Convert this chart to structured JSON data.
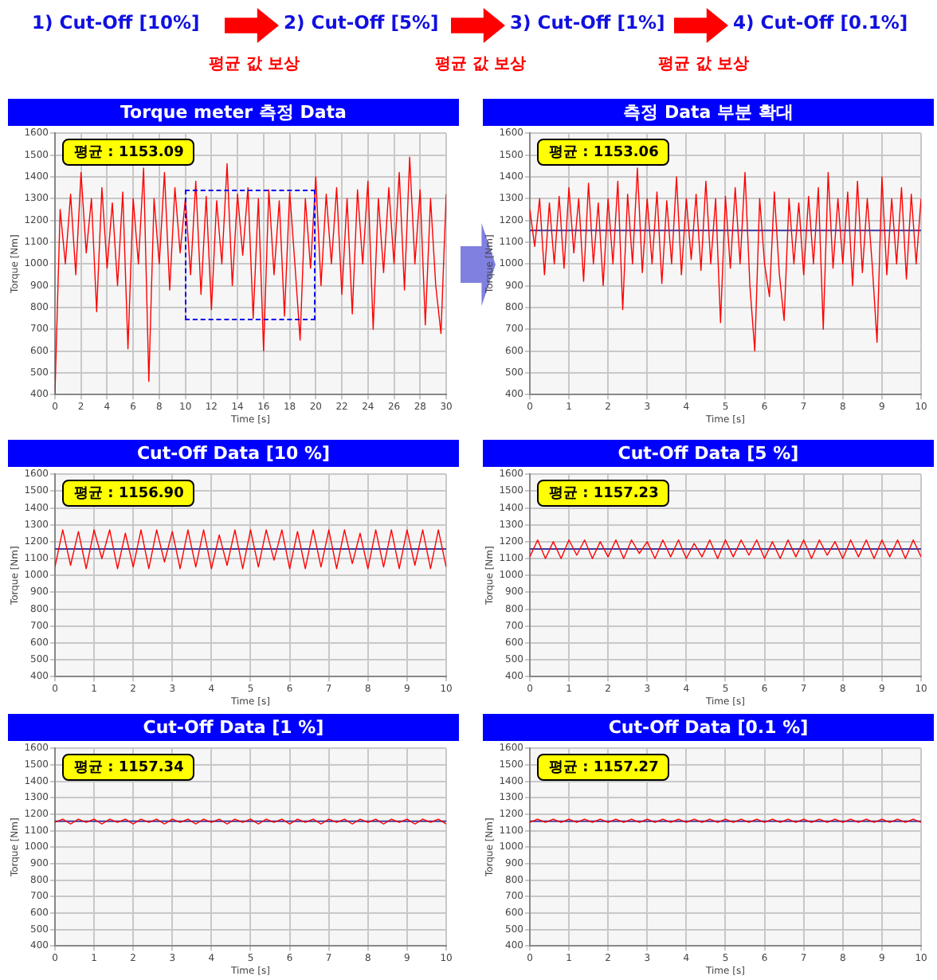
{
  "chart_data": [
    {
      "type": "other",
      "annotations": [
        "1)  Cut-Off [10%]",
        "2) Cut-Off [5%]",
        "3) Cut-Off [1%]",
        "4) Cut-Off [0.1%]",
        "평균 값 보상",
        "평균 값 보상",
        "평균 값 보상"
      ]
    },
    {
      "type": "line",
      "title": "Torque meter 측정 Data",
      "xlabel": "Time [s]",
      "ylabel": "Torque [Nm]",
      "annotations": [
        "평균 : 1153.09"
      ],
      "color": "#ff0000",
      "grid": true,
      "legend": false,
      "marker": "none",
      "xlim": [
        0,
        30
      ],
      "xticks": [
        0,
        2,
        4,
        6,
        8,
        10,
        12,
        14,
        16,
        18,
        20,
        22,
        24,
        26,
        28,
        30
      ],
      "ylim": [
        400,
        1600
      ],
      "yticks": [
        400,
        500,
        600,
        700,
        800,
        900,
        1000,
        1100,
        1200,
        1300,
        1400,
        1500,
        1600
      ],
      "x": [
        0,
        0.4,
        0.8,
        1.2,
        1.6,
        2,
        2.4,
        2.8,
        3.2,
        3.6,
        4,
        4.4,
        4.8,
        5.2,
        5.6,
        6,
        6.4,
        6.8,
        7.2,
        7.6,
        8,
        8.4,
        8.8,
        9.2,
        9.6,
        10,
        10.4,
        10.8,
        11.2,
        11.6,
        12,
        12.4,
        12.8,
        13.2,
        13.6,
        14,
        14.4,
        14.8,
        15.2,
        15.6,
        16,
        16.4,
        16.8,
        17.2,
        17.6,
        18,
        18.4,
        18.8,
        19.2,
        19.6,
        20,
        20.4,
        20.8,
        21.2,
        21.6,
        22,
        22.4,
        22.8,
        23.2,
        23.6,
        24,
        24.4,
        24.8,
        25.2,
        25.6,
        26,
        26.4,
        26.8,
        27.2,
        27.6,
        28,
        28.4,
        28.8,
        29.2,
        29.6,
        30
      ],
      "values": [
        400,
        1250,
        1000,
        1320,
        950,
        1420,
        1050,
        1300,
        780,
        1350,
        980,
        1280,
        900,
        1330,
        610,
        1300,
        1000,
        1440,
        460,
        1300,
        1000,
        1420,
        880,
        1350,
        1050,
        1300,
        950,
        1380,
        860,
        1310,
        790,
        1290,
        1000,
        1460,
        900,
        1320,
        1040,
        1350,
        750,
        1300,
        600,
        1340,
        950,
        1290,
        760,
        1330,
        1000,
        650,
        1300,
        980,
        1400,
        900,
        1320,
        1000,
        1350,
        860,
        1300,
        770,
        1340,
        1000,
        1380,
        700,
        1300,
        960,
        1350,
        1000,
        1420,
        880,
        1490,
        1000,
        1340,
        720,
        1300,
        900,
        680,
        1320
      ]
    },
    {
      "type": "line",
      "title": "측정 Data 부분 확대",
      "xlabel": "Time [s]",
      "ylabel": "Torque [Nm]",
      "annotations": [
        "평균 : 1153.06"
      ],
      "color": "#ff0000",
      "grid": true,
      "legend": false,
      "marker": "none",
      "xlim": [
        0,
        10
      ],
      "xticks": [
        0,
        1,
        2,
        3,
        4,
        5,
        6,
        7,
        8,
        9,
        10
      ],
      "ylim": [
        400,
        1600
      ],
      "yticks": [
        400,
        500,
        600,
        700,
        800,
        900,
        1000,
        1100,
        1200,
        1300,
        1400,
        1500,
        1600
      ],
      "ref_lines": [
        {
          "axis": "y",
          "value": 1153.06,
          "color": "#3c3ca0"
        }
      ],
      "x": [
        0,
        0.125,
        0.25,
        0.375,
        0.5,
        0.625,
        0.75,
        0.875,
        1,
        1.125,
        1.25,
        1.375,
        1.5,
        1.625,
        1.75,
        1.875,
        2,
        2.125,
        2.25,
        2.375,
        2.5,
        2.625,
        2.75,
        2.875,
        3,
        3.125,
        3.25,
        3.375,
        3.5,
        3.625,
        3.75,
        3.875,
        4,
        4.125,
        4.25,
        4.375,
        4.5,
        4.625,
        4.75,
        4.875,
        5,
        5.125,
        5.25,
        5.375,
        5.5,
        5.625,
        5.75,
        5.875,
        6,
        6.125,
        6.25,
        6.375,
        6.5,
        6.625,
        6.75,
        6.875,
        7,
        7.125,
        7.25,
        7.375,
        7.5,
        7.625,
        7.75,
        7.875,
        8,
        8.125,
        8.25,
        8.375,
        8.5,
        8.625,
        8.75,
        8.875,
        9,
        9.125,
        9.25,
        9.375,
        9.5,
        9.625,
        9.75,
        9.875,
        10
      ],
      "values": [
        1250,
        1080,
        1300,
        950,
        1280,
        1000,
        1310,
        980,
        1350,
        1050,
        1300,
        920,
        1370,
        1000,
        1280,
        900,
        1300,
        1000,
        1380,
        790,
        1320,
        1000,
        1440,
        960,
        1300,
        1000,
        1330,
        910,
        1290,
        1000,
        1400,
        950,
        1300,
        1020,
        1320,
        970,
        1380,
        1000,
        1300,
        730,
        1310,
        980,
        1350,
        1000,
        1420,
        900,
        600,
        1300,
        1000,
        850,
        1330,
        960,
        740,
        1300,
        1000,
        1280,
        950,
        1310,
        1000,
        1350,
        700,
        1420,
        980,
        1300,
        1000,
        1330,
        900,
        1380,
        960,
        1300,
        1000,
        640,
        1400,
        950,
        1300,
        1000,
        1350,
        930,
        1320,
        1000,
        1300
      ]
    },
    {
      "type": "line",
      "title": "Cut-Off Data [10 %]",
      "xlabel": "Time [s]",
      "ylabel": "Torque [Nm]",
      "annotations": [
        "평균 : 1156.90"
      ],
      "color": "#ff0000",
      "grid": true,
      "legend": false,
      "marker": "none",
      "xlim": [
        0,
        10
      ],
      "xticks": [
        0,
        1,
        2,
        3,
        4,
        5,
        6,
        7,
        8,
        9,
        10
      ],
      "ylim": [
        400,
        1600
      ],
      "yticks": [
        400,
        500,
        600,
        700,
        800,
        900,
        1000,
        1100,
        1200,
        1300,
        1400,
        1500,
        1600
      ],
      "ref_lines": [
        {
          "axis": "y",
          "value": 1156.9,
          "color": "#3c3ca0"
        }
      ],
      "x": [
        0,
        0.2,
        0.4,
        0.6,
        0.8,
        1,
        1.2,
        1.4,
        1.6,
        1.8,
        2,
        2.2,
        2.4,
        2.6,
        2.8,
        3,
        3.2,
        3.4,
        3.6,
        3.8,
        4,
        4.2,
        4.4,
        4.6,
        4.8,
        5,
        5.2,
        5.4,
        5.6,
        5.8,
        6,
        6.2,
        6.4,
        6.6,
        6.8,
        7,
        7.2,
        7.4,
        7.6,
        7.8,
        8,
        8.2,
        8.4,
        8.6,
        8.8,
        9,
        9.2,
        9.4,
        9.6,
        9.8,
        10
      ],
      "values": [
        1050,
        1270,
        1060,
        1260,
        1040,
        1270,
        1100,
        1270,
        1040,
        1250,
        1050,
        1270,
        1040,
        1270,
        1080,
        1260,
        1040,
        1270,
        1050,
        1270,
        1040,
        1240,
        1060,
        1270,
        1040,
        1270,
        1050,
        1270,
        1090,
        1270,
        1040,
        1260,
        1040,
        1270,
        1050,
        1270,
        1040,
        1270,
        1070,
        1250,
        1040,
        1270,
        1050,
        1270,
        1040,
        1270,
        1060,
        1270,
        1040,
        1270,
        1050
      ]
    },
    {
      "type": "line",
      "title": "Cut-Off Data [5 %]",
      "xlabel": "Time [s]",
      "ylabel": "Torque [Nm]",
      "annotations": [
        "평균 : 1157.23"
      ],
      "color": "#ff0000",
      "grid": true,
      "legend": false,
      "marker": "none",
      "xlim": [
        0,
        10
      ],
      "xticks": [
        0,
        1,
        2,
        3,
        4,
        5,
        6,
        7,
        8,
        9,
        10
      ],
      "ylim": [
        400,
        1600
      ],
      "yticks": [
        400,
        500,
        600,
        700,
        800,
        900,
        1000,
        1100,
        1200,
        1300,
        1400,
        1500,
        1600
      ],
      "ref_lines": [
        {
          "axis": "y",
          "value": 1157.23,
          "color": "#3c3ca0"
        }
      ],
      "x": [
        0,
        0.2,
        0.4,
        0.6,
        0.8,
        1,
        1.2,
        1.4,
        1.6,
        1.8,
        2,
        2.2,
        2.4,
        2.6,
        2.8,
        3,
        3.2,
        3.4,
        3.6,
        3.8,
        4,
        4.2,
        4.4,
        4.6,
        4.8,
        5,
        5.2,
        5.4,
        5.6,
        5.8,
        6,
        6.2,
        6.4,
        6.6,
        6.8,
        7,
        7.2,
        7.4,
        7.6,
        7.8,
        8,
        8.2,
        8.4,
        8.6,
        8.8,
        9,
        9.2,
        9.4,
        9.6,
        9.8,
        10
      ],
      "values": [
        1110,
        1210,
        1100,
        1200,
        1100,
        1210,
        1120,
        1210,
        1100,
        1200,
        1110,
        1210,
        1100,
        1210,
        1130,
        1200,
        1100,
        1210,
        1110,
        1210,
        1100,
        1190,
        1110,
        1210,
        1100,
        1210,
        1110,
        1210,
        1120,
        1210,
        1100,
        1200,
        1100,
        1210,
        1110,
        1210,
        1100,
        1210,
        1120,
        1200,
        1100,
        1210,
        1110,
        1210,
        1100,
        1210,
        1110,
        1210,
        1100,
        1210,
        1110
      ]
    },
    {
      "type": "line",
      "title": "Cut-Off Data [1 %]",
      "xlabel": "Time [s]",
      "ylabel": "Torque [Nm]",
      "annotations": [
        "평균 : 1157.34"
      ],
      "color": "#ff0000",
      "grid": true,
      "legend": false,
      "marker": "none",
      "xlim": [
        0,
        10
      ],
      "xticks": [
        0,
        1,
        2,
        3,
        4,
        5,
        6,
        7,
        8,
        9,
        10
      ],
      "ylim": [
        400,
        1600
      ],
      "yticks": [
        400,
        500,
        600,
        700,
        800,
        900,
        1000,
        1100,
        1200,
        1300,
        1400,
        1500,
        1600
      ],
      "ref_lines": [
        {
          "axis": "y",
          "value": 1157.34,
          "color": "#3c3ca0"
        }
      ],
      "x": [
        0,
        0.2,
        0.4,
        0.6,
        0.8,
        1,
        1.2,
        1.4,
        1.6,
        1.8,
        2,
        2.2,
        2.4,
        2.6,
        2.8,
        3,
        3.2,
        3.4,
        3.6,
        3.8,
        4,
        4.2,
        4.4,
        4.6,
        4.8,
        5,
        5.2,
        5.4,
        5.6,
        5.8,
        6,
        6.2,
        6.4,
        6.6,
        6.8,
        7,
        7.2,
        7.4,
        7.6,
        7.8,
        8,
        8.2,
        8.4,
        8.6,
        8.8,
        9,
        9.2,
        9.4,
        9.6,
        9.8,
        10
      ],
      "values": [
        1150,
        1170,
        1140,
        1170,
        1150,
        1170,
        1140,
        1170,
        1150,
        1170,
        1140,
        1170,
        1150,
        1170,
        1140,
        1170,
        1150,
        1170,
        1140,
        1170,
        1150,
        1170,
        1140,
        1170,
        1150,
        1170,
        1140,
        1170,
        1150,
        1170,
        1140,
        1170,
        1150,
        1170,
        1140,
        1170,
        1150,
        1170,
        1140,
        1170,
        1150,
        1170,
        1140,
        1170,
        1150,
        1170,
        1140,
        1170,
        1150,
        1170,
        1140
      ]
    },
    {
      "type": "line",
      "title": "Cut-Off Data [0.1 %]",
      "xlabel": "Time [s]",
      "ylabel": "Torque [Nm]",
      "annotations": [
        "평균 : 1157.27"
      ],
      "color": "#ff0000",
      "grid": true,
      "legend": false,
      "marker": "none",
      "xlim": [
        0,
        10
      ],
      "xticks": [
        0,
        1,
        2,
        3,
        4,
        5,
        6,
        7,
        8,
        9,
        10
      ],
      "ylim": [
        400,
        1600
      ],
      "yticks": [
        400,
        500,
        600,
        700,
        800,
        900,
        1000,
        1100,
        1200,
        1300,
        1400,
        1500,
        1600
      ],
      "ref_lines": [
        {
          "axis": "y",
          "value": 1157.27,
          "color": "#3c3ca0"
        }
      ],
      "x": [
        0,
        0.2,
        0.4,
        0.6,
        0.8,
        1,
        1.2,
        1.4,
        1.6,
        1.8,
        2,
        2.2,
        2.4,
        2.6,
        2.8,
        3,
        3.2,
        3.4,
        3.6,
        3.8,
        4,
        4.2,
        4.4,
        4.6,
        4.8,
        5,
        5.2,
        5.4,
        5.6,
        5.8,
        6,
        6.2,
        6.4,
        6.6,
        6.8,
        7,
        7.2,
        7.4,
        7.6,
        7.8,
        8,
        8.2,
        8.4,
        8.6,
        8.8,
        9,
        9.2,
        9.4,
        9.6,
        9.8,
        10
      ],
      "values": [
        1150,
        1170,
        1150,
        1170,
        1150,
        1170,
        1150,
        1170,
        1150,
        1170,
        1150,
        1170,
        1150,
        1170,
        1150,
        1170,
        1150,
        1170,
        1150,
        1170,
        1150,
        1170,
        1150,
        1170,
        1150,
        1170,
        1150,
        1170,
        1150,
        1170,
        1150,
        1170,
        1150,
        1170,
        1150,
        1170,
        1150,
        1170,
        1150,
        1170,
        1150,
        1170,
        1150,
        1170,
        1150,
        1170,
        1150,
        1170,
        1150,
        1170,
        1150
      ]
    }
  ]
}
